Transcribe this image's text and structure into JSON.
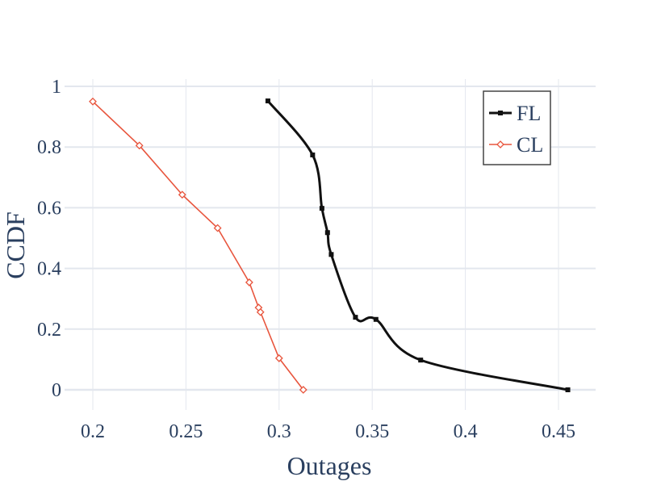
{
  "chart_data": {
    "type": "line",
    "title": "",
    "xlabel": "Outages",
    "ylabel": "CCDF",
    "xlim": [
      0.185,
      0.47
    ],
    "ylim": [
      -0.065,
      1.02
    ],
    "x_ticks": [
      0.2,
      0.25,
      0.3,
      0.35,
      0.4,
      0.45
    ],
    "x_tick_labels": [
      "0.2",
      "0.25",
      "0.3",
      "0.35",
      "0.4",
      "0.45"
    ],
    "y_ticks": [
      0,
      0.2,
      0.4,
      0.6,
      0.8,
      1
    ],
    "y_tick_labels": [
      "0",
      "0.2",
      "0.4",
      "0.6",
      "0.8",
      "1"
    ],
    "grid": true,
    "legend_position": "top-right",
    "series": [
      {
        "name": "FL",
        "color": "#111111",
        "marker": "square",
        "smooth": true,
        "x": [
          0.294,
          0.318,
          0.323,
          0.326,
          0.328,
          0.341,
          0.352,
          0.376,
          0.455
        ],
        "y": [
          0.952,
          0.774,
          0.598,
          0.518,
          0.446,
          0.239,
          0.232,
          0.098,
          0.0
        ]
      },
      {
        "name": "CL",
        "color": "#e8553d",
        "marker": "diamond-open",
        "smooth": false,
        "x": [
          0.2,
          0.225,
          0.248,
          0.267,
          0.284,
          0.289,
          0.29,
          0.3,
          0.313
        ],
        "y": [
          0.95,
          0.805,
          0.643,
          0.533,
          0.354,
          0.271,
          0.256,
          0.104,
          0.0
        ]
      }
    ]
  }
}
